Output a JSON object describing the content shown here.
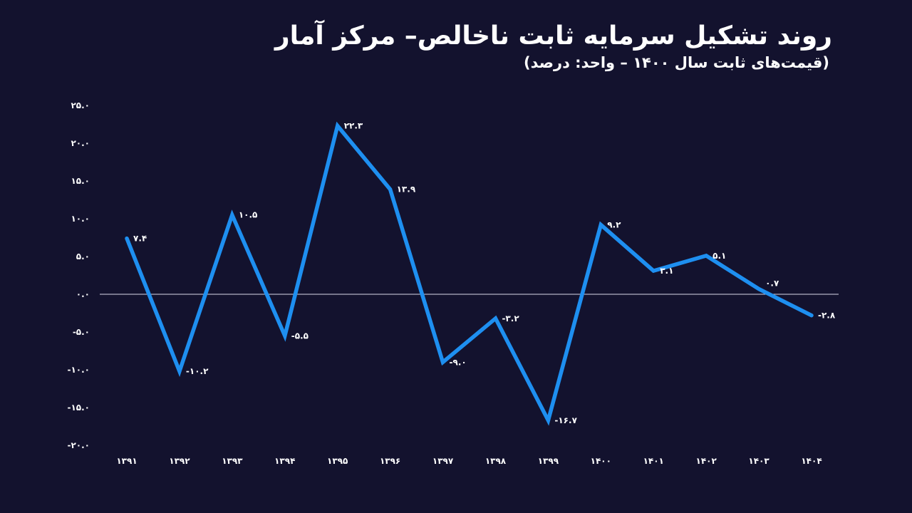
{
  "header": {
    "title": "روند تشکیل سرمایه ثابت ناخالص– مرکز آمار",
    "subtitle": "(قیمت‌های ثابت سال ۱۴۰۰ – واحد: درصد)"
  },
  "chart_data": {
    "type": "line",
    "title": "روند تشکیل سرمایه ثابت ناخالص– مرکز آمار",
    "subtitle": "(قیمت‌های ثابت سال ۱۴۰۰ – واحد: درصد)",
    "xlabel": "",
    "ylabel": "",
    "ylim": [
      -20,
      25
    ],
    "yticks": [
      25,
      20,
      15,
      10,
      5,
      0,
      -5,
      -10,
      -15,
      -20
    ],
    "ytick_labels": [
      "۲۵.۰",
      "۲۰.۰",
      "۱۵.۰",
      "۱۰.۰",
      "۵.۰",
      "۰.۰",
      "-۵.۰",
      "-۱۰.۰",
      "-۱۵.۰",
      "-۲۰.۰"
    ],
    "categories": [
      "۱۳۹۱",
      "۱۳۹۲",
      "۱۳۹۳",
      "۱۳۹۴",
      "۱۳۹۵",
      "۱۳۹۶",
      "۱۳۹۷",
      "۱۳۹۸",
      "۱۳۹۹",
      "۱۴۰۰",
      "۱۴۰۱",
      "۱۴۰۲",
      "۱۴۰۳",
      "۱۴۰۴"
    ],
    "series": [
      {
        "values": [
          7.4,
          -10.2,
          10.5,
          -5.5,
          22.3,
          13.9,
          -9.0,
          -3.2,
          -16.7,
          9.2,
          3.1,
          5.1,
          0.7,
          -2.8
        ],
        "labels": [
          "۷.۴",
          "-۱۰.۲",
          "۱۰.۵",
          "-۵.۵",
          "۲۲.۳",
          "۱۳.۹",
          "-۹.۰",
          "-۳.۲",
          "-۱۶.۷",
          "۹.۲",
          "۳.۱",
          "۵.۱",
          "۰.۷",
          "-۲.۸"
        ],
        "color": "#1e8ff0"
      }
    ],
    "grid": false,
    "zero_line": true,
    "legend": "none"
  },
  "colors": {
    "background": "#13122e",
    "line": "#1e8ff0",
    "text": "#ffffff"
  }
}
